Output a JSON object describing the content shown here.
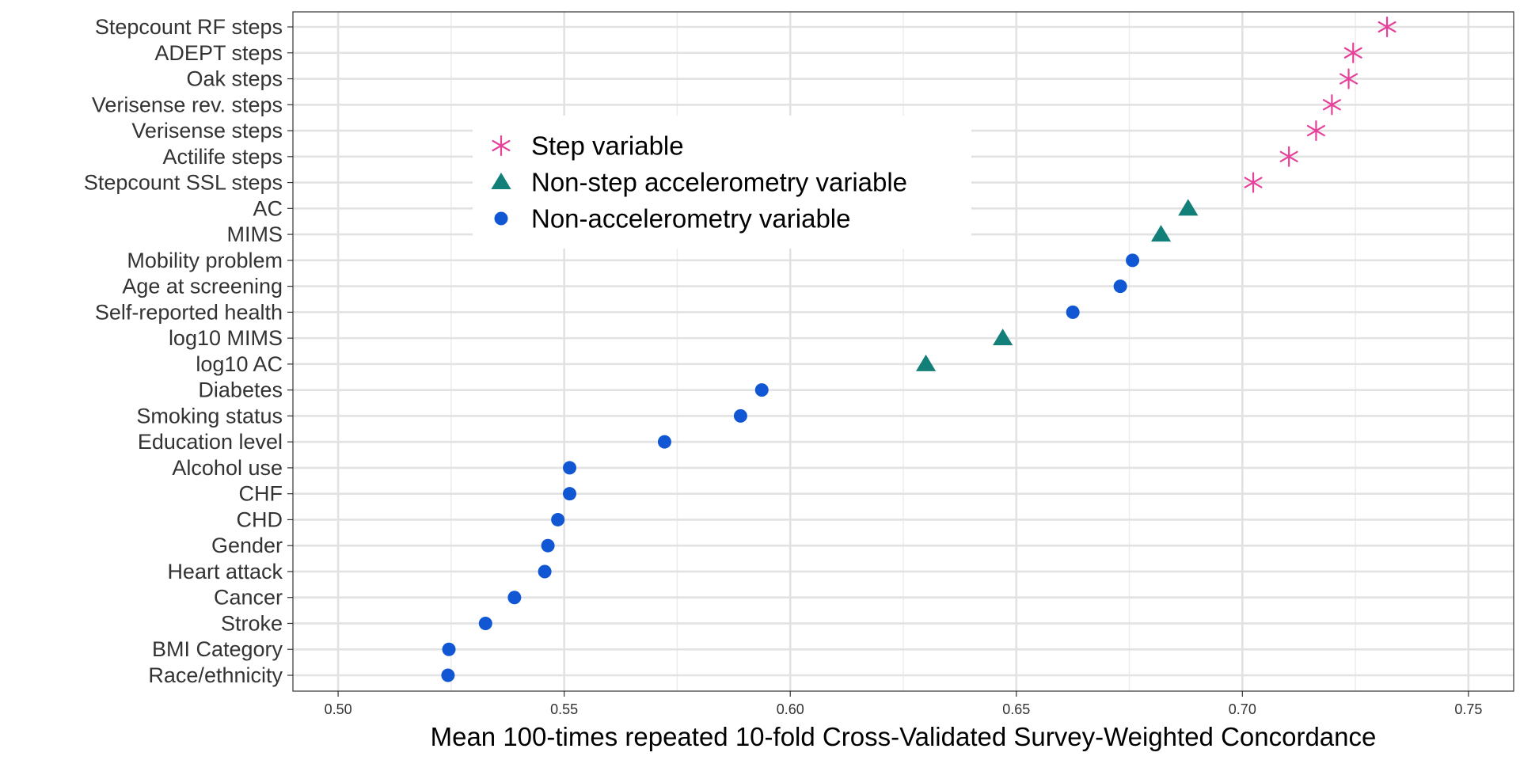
{
  "chart_data": {
    "type": "scatter",
    "title": "",
    "xlabel": "Mean 100-times repeated 10-fold Cross-Validated Survey-Weighted Concordance",
    "ylabel": "",
    "xlim": [
      0.49,
      0.76
    ],
    "x_ticks": [
      "0.50",
      "0.55",
      "0.60",
      "0.65",
      "0.70",
      "0.75"
    ],
    "grid": true,
    "legend_position": "upper-left inside",
    "categories": [
      "Stepcount RF steps",
      "ADEPT steps",
      "Oak steps",
      "Verisense rev. steps",
      "Verisense steps",
      "Actilife steps",
      "Stepcount SSL steps",
      "AC",
      "MIMS",
      "Mobility problem",
      "Age at screening",
      "Self-reported health",
      "log10 MIMS",
      "log10 AC",
      "Diabetes",
      "Smoking status",
      "Education level",
      "Alcohol use",
      "CHF",
      "CHD",
      "Gender",
      "Heart attack",
      "Cancer",
      "Stroke",
      "BMI Category",
      "Race/ethnicity"
    ],
    "series": [
      {
        "name": "Step variable",
        "marker": "asterisk",
        "color": "#e6409a",
        "points": [
          {
            "label": "Stepcount RF steps",
            "x": 0.732
          },
          {
            "label": "ADEPT steps",
            "x": 0.7245
          },
          {
            "label": "Oak steps",
            "x": 0.7235
          },
          {
            "label": "Verisense rev. steps",
            "x": 0.7198
          },
          {
            "label": "Verisense steps",
            "x": 0.7163
          },
          {
            "label": "Actilife steps",
            "x": 0.7103
          },
          {
            "label": "Stepcount SSL steps",
            "x": 0.7024
          }
        ]
      },
      {
        "name": "Non-step accelerometry variable",
        "marker": "triangle",
        "color": "#127f78",
        "points": [
          {
            "label": "AC",
            "x": 0.688
          },
          {
            "label": "MIMS",
            "x": 0.682
          },
          {
            "label": "log10 MIMS",
            "x": 0.647
          },
          {
            "label": "log10 AC",
            "x": 0.63
          }
        ]
      },
      {
        "name": "Non-accelerometry variable",
        "marker": "circle",
        "color": "#1157d4",
        "points": [
          {
            "label": "Mobility problem",
            "x": 0.6757
          },
          {
            "label": "Age at screening",
            "x": 0.673
          },
          {
            "label": "Self-reported health",
            "x": 0.6625
          },
          {
            "label": "Diabetes",
            "x": 0.5937
          },
          {
            "label": "Smoking status",
            "x": 0.589
          },
          {
            "label": "Education level",
            "x": 0.5722
          },
          {
            "label": "Alcohol use",
            "x": 0.5512
          },
          {
            "label": "CHF",
            "x": 0.5512
          },
          {
            "label": "CHD",
            "x": 0.5486
          },
          {
            "label": "Gender",
            "x": 0.5464
          },
          {
            "label": "Heart attack",
            "x": 0.5457
          },
          {
            "label": "Cancer",
            "x": 0.539
          },
          {
            "label": "Stroke",
            "x": 0.5326
          },
          {
            "label": "BMI Category",
            "x": 0.5245
          },
          {
            "label": "Race/ethnicity",
            "x": 0.5243
          }
        ]
      }
    ]
  }
}
